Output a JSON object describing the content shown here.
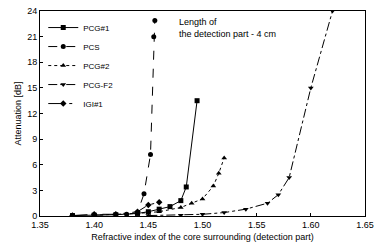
{
  "chart_data": {
    "type": "line",
    "x_label": "Refractive index of the core surrounding (detection part)",
    "y_label": "Attenuation [dB]",
    "annotation": "Length of\nthe detection part - 4 cm",
    "xlim": [
      1.35,
      1.65
    ],
    "xticks": [
      {
        "value": 1.35,
        "label": "1.35"
      },
      {
        "value": 1.4,
        "label": "1.40"
      },
      {
        "value": 1.45,
        "label": "1.45"
      },
      {
        "value": 1.5,
        "label": "1.50"
      },
      {
        "value": 1.55,
        "label": "1.55"
      },
      {
        "value": 1.6,
        "label": "1.60"
      },
      {
        "value": 1.65,
        "label": "1.65"
      }
    ],
    "ylim": [
      0,
      24
    ],
    "yticks": [
      0,
      3,
      6,
      9,
      12,
      15,
      18,
      21,
      24
    ],
    "grid": false,
    "legend": "top left",
    "series": [
      {
        "name": "PCG#1",
        "color": "#000000",
        "marker": "square",
        "line_style": "solid",
        "x": [
          1.38,
          1.4,
          1.42,
          1.44,
          1.45,
          1.46,
          1.47,
          1.48,
          1.485,
          1.495
        ],
        "values": [
          0.05,
          0.1,
          0.15,
          0.3,
          0.5,
          0.8,
          1.1,
          1.8,
          3.4,
          13.5
        ]
      },
      {
        "name": "PCS",
        "color": "#000000",
        "marker": "circle",
        "line_style": "dash",
        "x": [
          1.4,
          1.43,
          1.44,
          1.446,
          1.452,
          1.455,
          1.456
        ],
        "values": [
          0.1,
          0.2,
          0.4,
          2.6,
          7.2,
          21,
          22.9
        ]
      },
      {
        "name": "PCG#2",
        "color": "#000000",
        "marker": "triangle-up",
        "line_style": "dot",
        "x": [
          1.4,
          1.44,
          1.46,
          1.48,
          1.49,
          1.5,
          1.51,
          1.515,
          1.52
        ],
        "values": [
          0.1,
          0.3,
          0.5,
          1.0,
          1.5,
          2.0,
          3.5,
          5.0,
          6.8
        ]
      },
      {
        "name": "PCG-F2",
        "color": "#000000",
        "marker": "triangle-down",
        "line_style": "dashdot",
        "x": [
          1.45,
          1.48,
          1.5,
          1.52,
          1.54,
          1.56,
          1.57,
          1.58,
          1.6,
          1.62
        ],
        "values": [
          0.05,
          0.1,
          0.2,
          0.4,
          0.8,
          1.5,
          2.5,
          4.5,
          15,
          24
        ]
      },
      {
        "name": "IGI#1",
        "color": "#000000",
        "marker": "diamond",
        "line_style": "longdashdot",
        "x": [
          1.38,
          1.4,
          1.42,
          1.44,
          1.45,
          1.46
        ],
        "values": [
          0.05,
          0.2,
          0.2,
          0.5,
          1.3,
          1.6
        ]
      }
    ]
  }
}
